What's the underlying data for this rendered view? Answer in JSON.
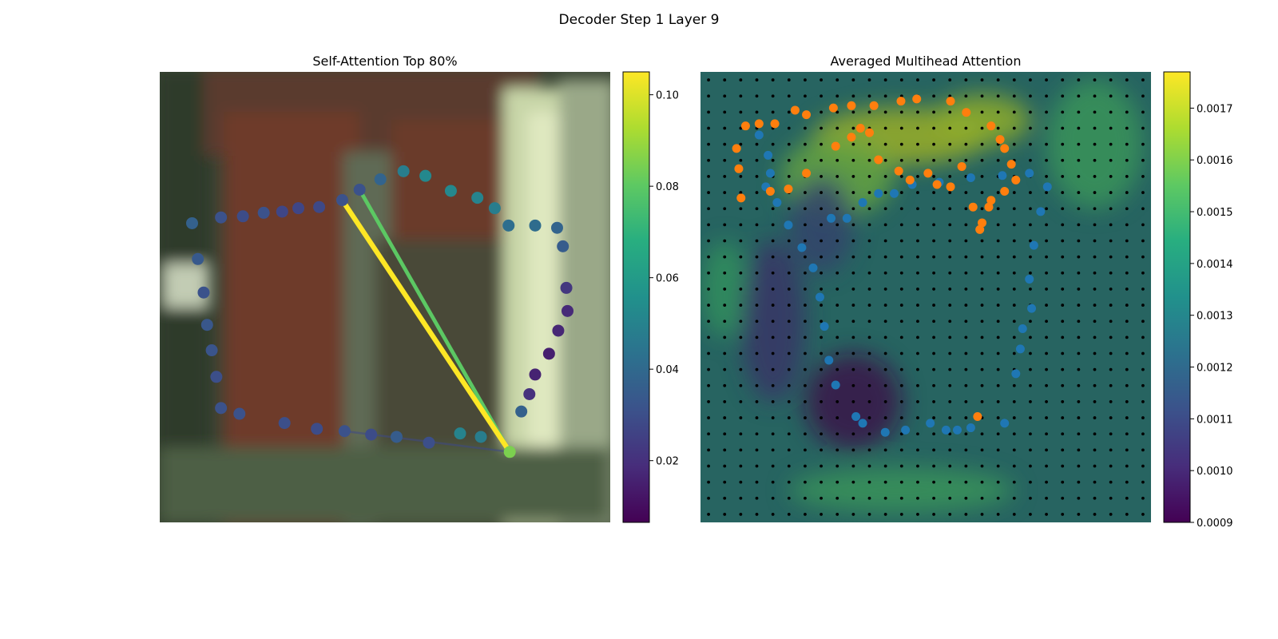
{
  "figure": {
    "title": "Decoder Step 1 Layer 9",
    "colors": {
      "cmap_low": "#440154",
      "cmap_mid": "#21908d",
      "cmap_high": "#fde725",
      "series_blue": "#1f77b4",
      "series_orange": "#ff7f0e"
    }
  },
  "chart_data": [
    {
      "type": "scatter",
      "title": "Self-Attention Top 80%",
      "background": "blurred image of a doorway (brown frame, pale right wall)",
      "axes_visible": false,
      "query_index": 25,
      "points": [
        [
          -0.62,
          1.05
        ],
        [
          -0.43,
          1.06
        ],
        [
          -0.25,
          1.09
        ],
        [
          -0.09,
          1.1
        ],
        [
          0.05,
          1.13
        ],
        [
          0.23,
          1.14
        ],
        [
          0.43,
          1.2
        ],
        [
          0.58,
          1.29
        ],
        [
          0.76,
          1.38
        ],
        [
          0.96,
          1.45
        ],
        [
          1.15,
          1.41
        ],
        [
          1.37,
          1.28
        ],
        [
          1.6,
          1.22
        ],
        [
          1.75,
          1.13
        ],
        [
          1.87,
          0.98
        ],
        [
          2.1,
          0.98
        ],
        [
          2.29,
          0.96
        ],
        [
          2.34,
          0.8
        ],
        [
          2.37,
          0.44
        ],
        [
          2.38,
          0.24
        ],
        [
          2.3,
          0.07
        ],
        [
          2.22,
          -0.13
        ],
        [
          2.1,
          -0.31
        ],
        [
          2.05,
          -0.48
        ],
        [
          1.98,
          -0.63
        ],
        [
          1.88,
          -0.98
        ],
        [
          1.63,
          -0.85
        ],
        [
          1.45,
          -0.82
        ],
        [
          1.18,
          -0.9
        ],
        [
          0.9,
          -0.85
        ],
        [
          0.68,
          -0.83
        ],
        [
          0.45,
          -0.8
        ],
        [
          0.21,
          -0.78
        ],
        [
          -0.07,
          -0.73
        ],
        [
          -0.46,
          -0.65
        ],
        [
          -0.62,
          -0.6
        ],
        [
          -0.66,
          -0.33
        ],
        [
          -0.7,
          -0.1
        ],
        [
          -0.74,
          0.12
        ],
        [
          -0.77,
          0.4
        ],
        [
          -0.82,
          0.69
        ],
        [
          -0.87,
          1.0
        ]
      ],
      "attention": [
        0.031,
        0.029,
        0.031,
        0.027,
        0.027,
        0.028,
        0.031,
        0.031,
        0.038,
        0.048,
        0.052,
        0.052,
        0.05,
        0.048,
        0.042,
        0.041,
        0.038,
        0.035,
        0.022,
        0.018,
        0.017,
        0.015,
        0.016,
        0.02,
        0.037,
        0.085,
        0.048,
        0.05,
        0.03,
        0.035,
        0.029,
        0.031,
        0.029,
        0.03,
        0.031,
        0.031,
        0.03,
        0.032,
        0.033,
        0.031,
        0.034,
        0.037
      ],
      "edges": [
        {
          "from": 6,
          "weight": 0.105
        },
        {
          "from": 7,
          "weight": 0.08
        },
        {
          "from": 31,
          "weight": 0.028
        }
      ],
      "colorbar": {
        "range": [
          0.0065,
          0.105
        ],
        "ticks": [
          0.02,
          0.04,
          0.06,
          0.08,
          0.1
        ],
        "tick_labels": [
          "0.02",
          "0.04",
          "0.06",
          "0.08",
          "0.10"
        ]
      },
      "xlim": [
        -1.15,
        2.75
      ],
      "ylim": [
        -1.59,
        2.31
      ]
    },
    {
      "type": "heatmap",
      "title": "Averaged Multihead Attention",
      "axes_visible": false,
      "grid": {
        "rows": 28,
        "cols": 28,
        "grid_dots": true
      },
      "colorbar": {
        "range": [
          0.0009,
          0.00177
        ],
        "ticks": [
          0.0009,
          0.001,
          0.0011,
          0.0012,
          0.0013,
          0.0014,
          0.0015,
          0.0016,
          0.0017
        ],
        "tick_labels": [
          "0.0009",
          "0.0010",
          "0.0011",
          "0.0012",
          "0.0013",
          "0.0014",
          "0.0015",
          "0.0016",
          "0.0017"
        ]
      },
      "hotspots": [
        {
          "row": 3.5,
          "col": 12,
          "value": 0.0017,
          "sr": 1.8,
          "sc": 5.5
        },
        {
          "row": 2.5,
          "col": 17,
          "value": 0.00168,
          "sr": 1.6,
          "sc": 3
        },
        {
          "row": 6,
          "col": 8,
          "value": 0.0016,
          "sr": 2.5,
          "sc": 3.5
        },
        {
          "row": 4,
          "col": 24,
          "value": 0.0015,
          "sr": 4,
          "sc": 3
        },
        {
          "row": 13,
          "col": 1,
          "value": 0.00148,
          "sr": 3,
          "sc": 1.4
        },
        {
          "row": 25.5,
          "col": 12,
          "value": 0.0015,
          "sr": 1.4,
          "sc": 7
        },
        {
          "row": 20,
          "col": 9,
          "value": 0.00092,
          "sr": 3,
          "sc": 3
        },
        {
          "row": 15,
          "col": 4,
          "value": 0.00105,
          "sr": 5,
          "sc": 2
        },
        {
          "row": 9,
          "col": 7,
          "value": 0.0011,
          "sr": 3,
          "sc": 2
        }
      ],
      "series": [
        {
          "name": "",
          "color": "#1f77b4",
          "points": [
            [
              -0.42,
              0.35
            ],
            [
              -0.35,
              0.35
            ],
            [
              -0.28,
              0.42
            ],
            [
              -0.21,
              0.46
            ],
            [
              -0.14,
              0.46
            ],
            [
              -0.06,
              0.5
            ],
            [
              0.06,
              0.51
            ],
            [
              0.2,
              0.53
            ],
            [
              0.34,
              0.54
            ],
            [
              0.46,
              0.55
            ],
            [
              0.54,
              0.49
            ],
            [
              0.51,
              0.38
            ],
            [
              0.48,
              0.23
            ],
            [
              0.46,
              0.08
            ],
            [
              0.47,
              -0.05
            ],
            [
              0.43,
              -0.14
            ],
            [
              0.42,
              -0.23
            ],
            [
              0.4,
              -0.34
            ],
            [
              0.35,
              -0.56
            ],
            [
              0.2,
              -0.58
            ],
            [
              0.14,
              -0.59
            ],
            [
              0.09,
              -0.59
            ],
            [
              0.02,
              -0.56
            ],
            [
              -0.09,
              -0.59
            ],
            [
              -0.18,
              -0.6
            ],
            [
              -0.28,
              -0.56
            ],
            [
              -0.31,
              -0.53
            ],
            [
              -0.4,
              -0.39
            ],
            [
              -0.43,
              -0.28
            ],
            [
              -0.45,
              -0.13
            ],
            [
              -0.47,
              0.0
            ],
            [
              -0.5,
              0.13
            ],
            [
              -0.55,
              0.22
            ],
            [
              -0.61,
              0.32
            ],
            [
              -0.66,
              0.42
            ],
            [
              -0.71,
              0.49
            ],
            [
              -0.69,
              0.55
            ],
            [
              -0.7,
              0.63
            ],
            [
              -0.74,
              0.72
            ]
          ]
        },
        {
          "name": "",
          "color": "#ff7f0e",
          "points": [
            [
              -0.8,
              0.76
            ],
            [
              -0.84,
              0.66
            ],
            [
              -0.83,
              0.57
            ],
            [
              -0.82,
              0.44
            ],
            [
              -0.69,
              0.47
            ],
            [
              -0.61,
              0.48
            ],
            [
              -0.53,
              0.55
            ],
            [
              -0.4,
              0.67
            ],
            [
              -0.33,
              0.71
            ],
            [
              -0.29,
              0.75
            ],
            [
              -0.25,
              0.73
            ],
            [
              -0.21,
              0.61
            ],
            [
              -0.12,
              0.56
            ],
            [
              -0.07,
              0.52
            ],
            [
              0.01,
              0.55
            ],
            [
              0.05,
              0.5
            ],
            [
              0.11,
              0.49
            ],
            [
              0.16,
              0.58
            ],
            [
              0.21,
              0.4
            ],
            [
              0.25,
              0.33
            ],
            [
              0.24,
              0.3
            ],
            [
              0.29,
              0.43
            ],
            [
              0.28,
              0.4
            ],
            [
              0.35,
              0.47
            ],
            [
              0.4,
              0.52
            ],
            [
              0.38,
              0.59
            ],
            [
              0.35,
              0.66
            ],
            [
              0.33,
              0.7
            ],
            [
              0.29,
              0.76
            ],
            [
              0.18,
              0.82
            ],
            [
              0.11,
              0.87
            ],
            [
              -0.04,
              0.88
            ],
            [
              -0.11,
              0.87
            ],
            [
              -0.23,
              0.85
            ],
            [
              -0.33,
              0.85
            ],
            [
              -0.41,
              0.84
            ],
            [
              -0.53,
              0.81
            ],
            [
              -0.58,
              0.83
            ],
            [
              -0.67,
              0.77
            ],
            [
              -0.74,
              0.77
            ],
            [
              0.23,
              -0.53
            ]
          ]
        }
      ]
    }
  ]
}
